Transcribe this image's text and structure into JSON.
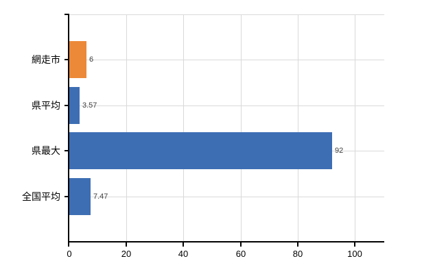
{
  "chart_data": {
    "type": "bar",
    "orientation": "horizontal",
    "categories": [
      "網走市",
      "県平均",
      "県最大",
      "全国平均"
    ],
    "values": [
      6,
      3.57,
      92,
      7.47
    ],
    "value_labels": [
      "6",
      "3.57",
      "92",
      "7.47"
    ],
    "bar_colors": [
      "#ec8938",
      "#3d6eb4",
      "#3d6eb4",
      "#3d6eb4"
    ],
    "x_tick_labels": [
      "0",
      "20",
      "40",
      "60",
      "80",
      "100"
    ],
    "x_tick_values": [
      0,
      20,
      40,
      60,
      80,
      100
    ],
    "xlim": [
      0,
      110.3
    ],
    "grid": true,
    "legend_position": "none"
  },
  "colors": {
    "background": "#ffffff",
    "axis": "#000000",
    "gridline": "#d9d9d9",
    "bar_default": "#3d6eb4",
    "bar_highlight": "#ec8938",
    "value_label": "#404040",
    "tick_label": "#000000"
  }
}
